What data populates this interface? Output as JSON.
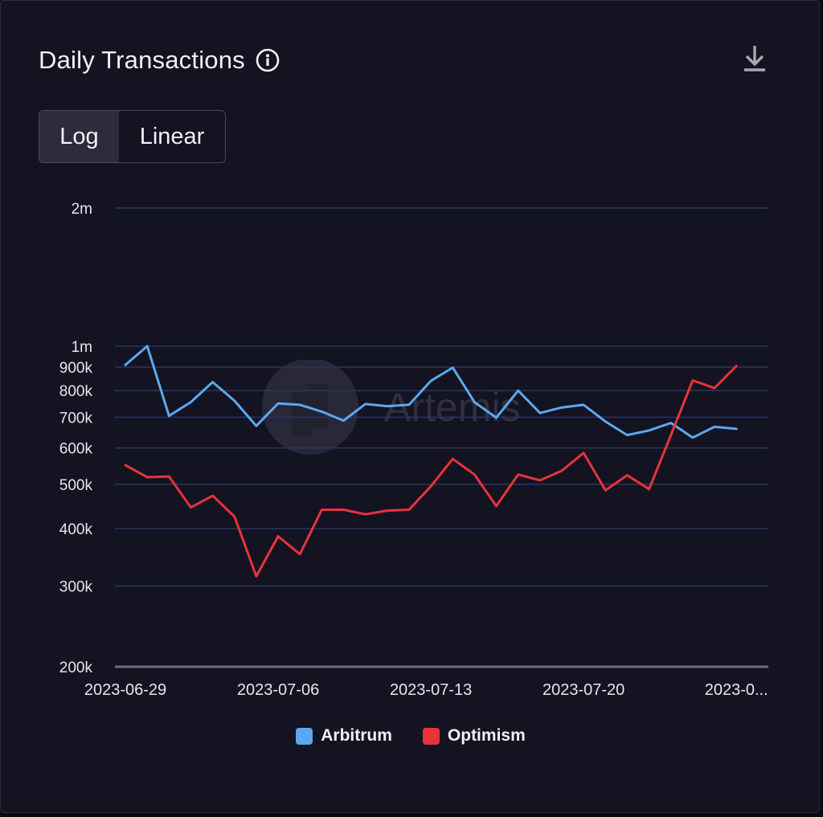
{
  "title": "Daily Transactions",
  "icons": {
    "info": "info-circle-icon",
    "download": "download-icon"
  },
  "toggle": {
    "options": [
      "Log",
      "Linear"
    ],
    "active": "Log"
  },
  "watermark": {
    "text": "Artemis"
  },
  "colors": {
    "arbitrum": "#5ba8f0",
    "optimism": "#e8333a",
    "grid": "#2e3460"
  },
  "chart_data": {
    "type": "line",
    "title": "Daily Transactions",
    "yscale": "log",
    "ylim": [
      200000,
      2000000
    ],
    "y_ticks": [
      {
        "value": 2000000,
        "label": "2m"
      },
      {
        "value": 1000000,
        "label": "1m"
      },
      {
        "value": 900000,
        "label": "900k"
      },
      {
        "value": 800000,
        "label": "800k"
      },
      {
        "value": 700000,
        "label": "700k"
      },
      {
        "value": 600000,
        "label": "600k"
      },
      {
        "value": 500000,
        "label": "500k"
      },
      {
        "value": 400000,
        "label": "400k"
      },
      {
        "value": 300000,
        "label": "300k"
      },
      {
        "value": 200000,
        "label": "200k"
      }
    ],
    "x": [
      "2023-06-29",
      "2023-06-30",
      "2023-07-01",
      "2023-07-02",
      "2023-07-03",
      "2023-07-04",
      "2023-07-05",
      "2023-07-06",
      "2023-07-07",
      "2023-07-08",
      "2023-07-09",
      "2023-07-10",
      "2023-07-11",
      "2023-07-12",
      "2023-07-13",
      "2023-07-14",
      "2023-07-15",
      "2023-07-16",
      "2023-07-17",
      "2023-07-18",
      "2023-07-19",
      "2023-07-20",
      "2023-07-21",
      "2023-07-22",
      "2023-07-23",
      "2023-07-24",
      "2023-07-25",
      "2023-07-26",
      "2023-07-27",
      "2023-07-28"
    ],
    "x_tick_labels": [
      {
        "date": "2023-06-29",
        "label": "2023-06-29"
      },
      {
        "date": "2023-07-06",
        "label": "2023-07-06"
      },
      {
        "date": "2023-07-13",
        "label": "2023-07-13"
      },
      {
        "date": "2023-07-20",
        "label": "2023-07-20"
      },
      {
        "date": "2023-07-27",
        "label": "2023-0..."
      }
    ],
    "legend_position": "bottom",
    "grid": true,
    "series": [
      {
        "name": "Arbitrum",
        "values": [
          910000,
          1000000,
          705000,
          755000,
          835000,
          760000,
          670000,
          750000,
          745000,
          720000,
          688000,
          748000,
          740000,
          745000,
          840000,
          898000,
          755000,
          698000,
          800000,
          715000,
          735000,
          745000,
          685000,
          640000,
          655000,
          680000,
          632000,
          667000,
          660000,
          null
        ]
      },
      {
        "name": "Optimism",
        "values": [
          550000,
          518000,
          520000,
          445000,
          472000,
          425000,
          315000,
          385000,
          352000,
          440000,
          440000,
          430000,
          438000,
          440000,
          495000,
          568000,
          525000,
          448000,
          525000,
          510000,
          535000,
          585000,
          485000,
          523000,
          488000,
          640000,
          842000,
          810000,
          905000,
          null
        ]
      }
    ]
  }
}
